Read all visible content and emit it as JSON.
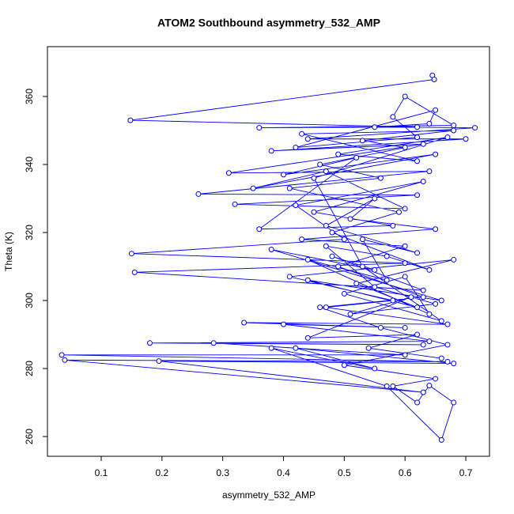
{
  "chart_data": {
    "type": "line",
    "marker": "circle",
    "color": "#0000ff",
    "title": "ATOM2 Southbound asymmetry_532_AMP",
    "x_label": "asymmetry_532_AMP",
    "y_label": "Theta (K)",
    "xlim": [
      0.0115,
      0.739
    ],
    "ylim": [
      254.2,
      374.65
    ],
    "xticks": [
      0.1,
      0.2,
      0.3,
      0.4,
      0.5,
      0.6,
      0.7
    ],
    "yticks": [
      260,
      280,
      300,
      320,
      340,
      360
    ],
    "x": [
      0.645,
      0.648,
      0.148,
      0.62,
      0.36,
      0.68,
      0.6,
      0.58,
      0.62,
      0.42,
      0.65,
      0.64,
      0.55,
      0.715,
      0.44,
      0.7,
      0.38,
      0.63,
      0.31,
      0.64,
      0.26,
      0.62,
      0.32,
      0.6,
      0.47,
      0.35,
      0.65,
      0.4,
      0.52,
      0.36,
      0.58,
      0.45,
      0.63,
      0.42,
      0.5,
      0.15,
      0.6,
      0.155,
      0.63,
      0.48,
      0.55,
      0.38,
      0.66,
      0.44,
      0.62,
      0.52,
      0.68,
      0.41,
      0.58,
      0.47,
      0.67,
      0.335,
      0.6,
      0.4,
      0.64,
      0.18,
      0.63,
      0.285,
      0.6,
      0.035,
      0.67,
      0.04,
      0.63,
      0.195,
      0.68,
      0.42,
      0.55,
      0.38,
      0.57,
      0.66,
      0.68,
      0.64,
      0.62,
      0.58,
      0.65,
      0.5,
      0.67,
      0.56,
      0.46,
      0.63,
      0.49,
      0.6,
      0.43,
      0.65,
      0.51,
      0.55,
      0.47,
      0.62,
      0.53,
      0.57,
      0.44,
      0.64,
      0.6,
      0.5,
      0.66,
      0.53,
      0.45,
      0.67,
      0.49,
      0.62,
      0.43,
      0.68,
      0.53,
      0.6,
      0.46,
      0.56,
      0.41,
      0.59,
      0.48,
      0.64,
      0.57,
      0.47,
      0.55,
      0.65,
      0.51,
      0.61,
      0.44,
      0.62,
      0.54,
      0.66
    ],
    "values": [
      366.2,
      365,
      353,
      351,
      350.8,
      351.5,
      360,
      354,
      348,
      345,
      356,
      352,
      351,
      350.8,
      347.5,
      347.5,
      344,
      346,
      337.5,
      338,
      331.3,
      331,
      328.3,
      327,
      338,
      333,
      343,
      337,
      342,
      321,
      322,
      326,
      335,
      328,
      318,
      313.8,
      311,
      308.3,
      303,
      313,
      309,
      315,
      300,
      306,
      298,
      305,
      312,
      307,
      300,
      298,
      293,
      293.5,
      292,
      293,
      288,
      287.5,
      287,
      287.5,
      284,
      284,
      282,
      282.5,
      273,
      282.2,
      281.5,
      286,
      280,
      286,
      274.8,
      259,
      270,
      275,
      270,
      274.8,
      277,
      281,
      287,
      292,
      298,
      301,
      310,
      316,
      318,
      321,
      324,
      330,
      322,
      314,
      318,
      306,
      312,
      296,
      307,
      302,
      294,
      310,
      336,
      348,
      343,
      341,
      349,
      350,
      347,
      345,
      340,
      336,
      333,
      326,
      320,
      309,
      313,
      316,
      304,
      299,
      296,
      301,
      289,
      290,
      286,
      283
    ]
  }
}
